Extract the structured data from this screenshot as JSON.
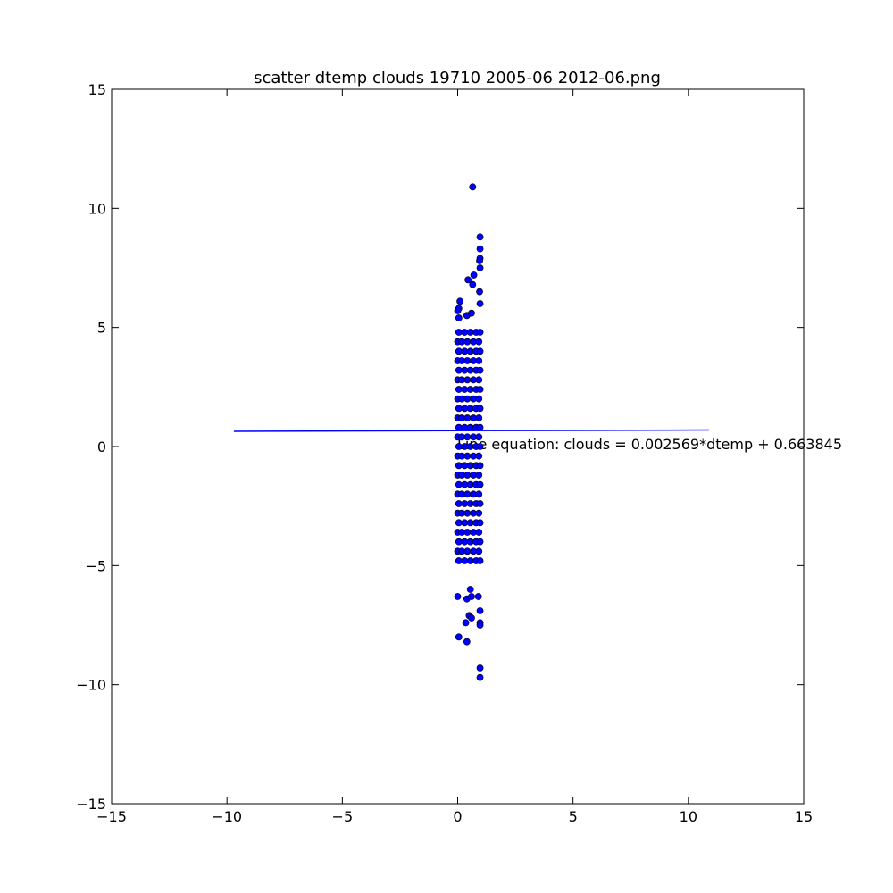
{
  "chart_data": {
    "type": "scatter",
    "title": "scatter dtemp clouds 19710 2005-06 2012-06.png",
    "annotation": "Line equation: clouds = 0.002569*dtemp + 0.663845",
    "xlim": [
      -15,
      15
    ],
    "ylim": [
      -15,
      15
    ],
    "xticks": [
      {
        "value": -15,
        "label": "−15"
      },
      {
        "value": -10,
        "label": "−10"
      },
      {
        "value": -5,
        "label": "−5"
      },
      0,
      5,
      10,
      15
    ],
    "yticks": [
      {
        "value": -15,
        "label": "−15"
      },
      {
        "value": -10,
        "label": "−10"
      },
      {
        "value": -5,
        "label": "−5"
      },
      0,
      5,
      10,
      15
    ],
    "series": [
      {
        "type": "scatter",
        "color": "#0000ff",
        "x": [
          0.05,
          0.3,
          0.55,
          0.8,
          0.97,
          0.0,
          0.18,
          0.42,
          0.68,
          0.92,
          0.05,
          0.3,
          0.55,
          0.8,
          0.97,
          0.0,
          0.18,
          0.42,
          0.68,
          0.92,
          0.05,
          0.3,
          0.55,
          0.8,
          0.97,
          0.0,
          0.18,
          0.42,
          0.68,
          0.92,
          0.05,
          0.3,
          0.55,
          0.8,
          0.97,
          0.0,
          0.18,
          0.42,
          0.68,
          0.92,
          0.05,
          0.3,
          0.55,
          0.8,
          0.97,
          0.0,
          0.18,
          0.42,
          0.68,
          0.92,
          0.05,
          0.3,
          0.55,
          0.8,
          0.97,
          0.0,
          0.18,
          0.42,
          0.68,
          0.92,
          0.05,
          0.3,
          0.55,
          0.8,
          0.97,
          0.0,
          0.18,
          0.42,
          0.68,
          0.92,
          0.05,
          0.3,
          0.55,
          0.8,
          0.97,
          0.0,
          0.18,
          0.42,
          0.68,
          0.92,
          0.05,
          0.3,
          0.55,
          0.8,
          0.97,
          0.0,
          0.18,
          0.42,
          0.68,
          0.92,
          0.05,
          0.3,
          0.55,
          0.8,
          0.97,
          0.0,
          0.18,
          0.42,
          0.68,
          0.92,
          0.05,
          0.3,
          0.55,
          0.8,
          0.97,
          0.0,
          0.18,
          0.42,
          0.68,
          0.92,
          0.05,
          0.3,
          0.55,
          0.8,
          0.97,
          0.0,
          0.18,
          0.42,
          0.68,
          0.92,
          0.05,
          0.3,
          0.55,
          0.8,
          0.97,
          0.65,
          0.97,
          0.97,
          0.97,
          0.95,
          0.97,
          0.7,
          0.45,
          0.65,
          0.95,
          0.1,
          0.05,
          0.0,
          0.05,
          0.4,
          0.6,
          0.97,
          0.0,
          0.4,
          0.55,
          0.6,
          0.9,
          0.97,
          0.5,
          0.6,
          0.35,
          0.97,
          0.97,
          0.05,
          0.4,
          0.97,
          0.97
        ],
        "values": [
          -4.8,
          -4.8,
          -4.8,
          -4.8,
          -4.8,
          -4.4,
          -4.4,
          -4.4,
          -4.4,
          -4.4,
          -4.0,
          -4.0,
          -4.0,
          -4.0,
          -4.0,
          -3.6,
          -3.6,
          -3.6,
          -3.6,
          -3.6,
          -3.2,
          -3.2,
          -3.2,
          -3.2,
          -3.2,
          -2.8,
          -2.8,
          -2.8,
          -2.8,
          -2.8,
          -2.4,
          -2.4,
          -2.4,
          -2.4,
          -2.4,
          -2.0,
          -2.0,
          -2.0,
          -2.0,
          -2.0,
          -1.6,
          -1.6,
          -1.6,
          -1.6,
          -1.6,
          -1.2,
          -1.2,
          -1.2,
          -1.2,
          -1.2,
          -0.8,
          -0.8,
          -0.8,
          -0.8,
          -0.8,
          -0.4,
          -0.4,
          -0.4,
          -0.4,
          -0.4,
          0,
          0,
          0,
          0,
          0,
          0.4,
          0.4,
          0.4,
          0.4,
          0.4,
          0.8,
          0.8,
          0.8,
          0.8,
          0.8,
          1.2,
          1.2,
          1.2,
          1.2,
          1.2,
          1.6,
          1.6,
          1.6,
          1.6,
          1.6,
          2.0,
          2.0,
          2.0,
          2.0,
          2.0,
          2.4,
          2.4,
          2.4,
          2.4,
          2.4,
          2.8,
          2.8,
          2.8,
          2.8,
          2.8,
          3.2,
          3.2,
          3.2,
          3.2,
          3.2,
          3.6,
          3.6,
          3.6,
          3.6,
          3.6,
          4.0,
          4.0,
          4.0,
          4.0,
          4.0,
          4.4,
          4.4,
          4.4,
          4.4,
          4.4,
          4.8,
          4.8,
          4.8,
          4.8,
          4.8,
          10.9,
          8.8,
          8.3,
          7.9,
          7.8,
          7.5,
          7.2,
          7.0,
          6.8,
          6.5,
          6.1,
          5.8,
          5.7,
          5.4,
          5.5,
          5.6,
          6.0,
          -6.3,
          -6.4,
          -6.0,
          -6.3,
          -6.3,
          -6.9,
          -7.1,
          -7.2,
          -7.4,
          -7.4,
          -7.5,
          -8.0,
          -8.2,
          -9.3,
          -9.7
        ]
      },
      {
        "type": "line",
        "color": "#0000ff",
        "x": [
          -9.7,
          10.9
        ],
        "values": [
          0.6389,
          0.6918
        ]
      }
    ]
  }
}
